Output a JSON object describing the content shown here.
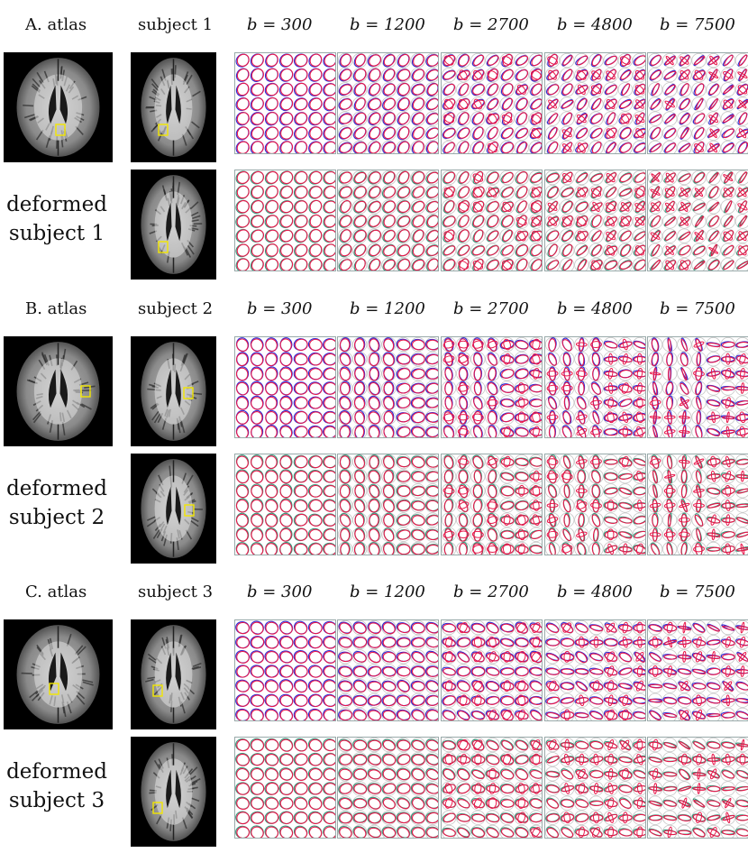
{
  "column_headers": {
    "b_values": [
      "b = 300",
      "b = 1200",
      "b = 2700",
      "b = 4800",
      "b = 7500"
    ]
  },
  "sections": [
    {
      "id": "A",
      "atlas_label": "A. atlas",
      "subject_label": "subject 1",
      "deformed_label_line1": "deformed",
      "deformed_label_line2": "subject 1",
      "orientation": "diagonal"
    },
    {
      "id": "B",
      "atlas_label": "B. atlas",
      "subject_label": "subject 2",
      "deformed_label_line1": "deformed",
      "deformed_label_line2": "subject 2",
      "orientation": "vertical"
    },
    {
      "id": "C",
      "atlas_label": "C. atlas",
      "subject_label": "subject 3",
      "deformed_label_line1": "deformed",
      "deformed_label_line2": "subject 3",
      "orientation": "horizontal"
    }
  ],
  "colors": {
    "atlas_glyph": "#e8174a",
    "subject_glyph": "#2b2bd6",
    "deformed_glyph": "#2e9a7a",
    "roi_box": "#f2e600",
    "mri_background": "#000000"
  }
}
